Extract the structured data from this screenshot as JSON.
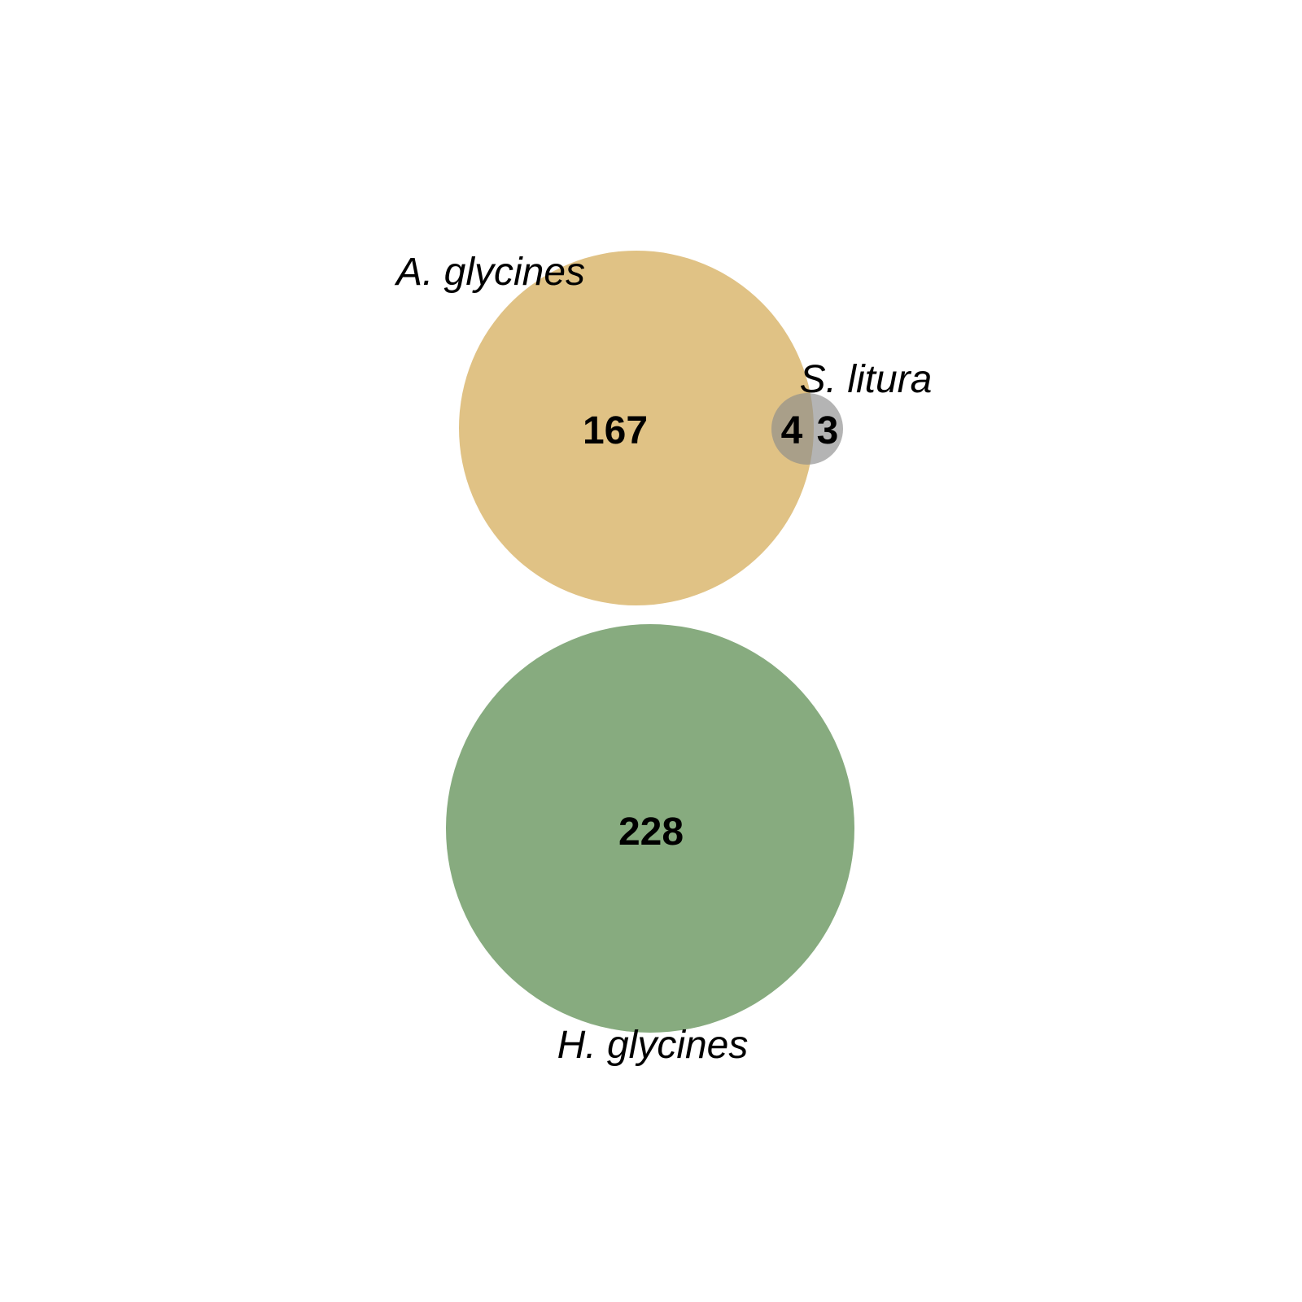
{
  "chart_data": {
    "type": "venn",
    "sets": [
      {
        "id": "A",
        "name": "A. glycines",
        "color": "#E0C285"
      },
      {
        "id": "S",
        "name": "S. litura",
        "color": "#8C8C8C"
      },
      {
        "id": "H",
        "name": "H. glycines",
        "color": "#87AB7F"
      }
    ],
    "regions": [
      {
        "sets": [
          "A"
        ],
        "count": "167"
      },
      {
        "sets": [
          "A",
          "S"
        ],
        "count": "4"
      },
      {
        "sets": [
          "S"
        ],
        "count": "3"
      },
      {
        "sets": [
          "H"
        ],
        "count": "228"
      }
    ]
  }
}
